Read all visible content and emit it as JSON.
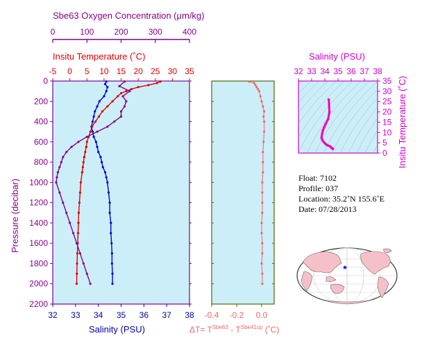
{
  "chart_data": [
    {
      "type": "line",
      "panel": "main-profile",
      "axes": {
        "pressure": {
          "label": "Pressure (decibar)",
          "range": [
            0,
            2200
          ],
          "ticks": [
            0,
            200,
            400,
            600,
            800,
            1000,
            1200,
            1400,
            1600,
            1800,
            2000,
            2200
          ],
          "inverted": true
        },
        "salinity": {
          "label": "Salinity (PSU)",
          "range": [
            32,
            38
          ],
          "ticks": [
            32,
            33,
            34,
            35,
            36,
            37,
            38
          ]
        },
        "temperature": {
          "label": "Insitu Temperature (˚C)",
          "range": [
            -5,
            35
          ],
          "ticks": [
            -5,
            0,
            5,
            10,
            15,
            20,
            25,
            30,
            35
          ]
        },
        "oxygen": {
          "label": "Sbe63 Oxygen Concentration (μm/kg)",
          "range": [
            0,
            400
          ],
          "ticks": [
            0,
            100,
            200,
            300,
            400
          ]
        }
      },
      "series": [
        {
          "name": "Salinity",
          "axis": "salinity",
          "color": "#0000dd",
          "pressure": [
            5,
            30,
            60,
            100,
            150,
            200,
            250,
            300,
            350,
            400,
            450,
            500,
            550,
            600,
            650,
            700,
            750,
            800,
            850,
            900,
            950,
            1000,
            1100,
            1200,
            1300,
            1400,
            1500,
            1600,
            1700,
            1800,
            1900,
            2000
          ],
          "values": [
            34.35,
            34.3,
            34.4,
            34.35,
            34.25,
            34.05,
            33.95,
            33.85,
            33.8,
            33.75,
            33.7,
            33.75,
            33.8,
            33.9,
            33.95,
            34.0,
            34.1,
            34.15,
            34.2,
            34.3,
            34.35,
            34.4,
            34.45,
            34.5,
            34.5,
            34.55,
            34.55,
            34.58,
            34.6,
            34.6,
            34.62,
            34.62
          ]
        },
        {
          "name": "Temperature",
          "axis": "temperature",
          "color": "#dd0000",
          "pressure": [
            5,
            20,
            40,
            60,
            80,
            100,
            120,
            150,
            200,
            250,
            300,
            350,
            400,
            450,
            500,
            550,
            600,
            650,
            700,
            750,
            800,
            850,
            900,
            1000,
            1100,
            1200,
            1300,
            1400,
            1500,
            1600,
            1700,
            1800,
            1900,
            2000
          ],
          "values": [
            26.5,
            25.5,
            23,
            20,
            18,
            16.5,
            15,
            14,
            12.5,
            11,
            9.5,
            8.5,
            7.5,
            6.5,
            6,
            5.5,
            5,
            4.8,
            4.5,
            4.2,
            4,
            3.8,
            3.6,
            3.2,
            3,
            2.8,
            2.6,
            2.5,
            2.4,
            2.3,
            2.2,
            2.1,
            2.05,
            2.0
          ]
        },
        {
          "name": "Oxygen",
          "axis": "oxygen",
          "color": "#880088",
          "pressure": [
            5,
            50,
            100,
            150,
            200,
            250,
            300,
            350,
            400,
            450,
            500,
            550,
            600,
            650,
            700,
            750,
            800,
            850,
            900,
            950,
            1000,
            1100,
            1200,
            1300,
            1400,
            1500,
            1600,
            1700,
            1800,
            1900,
            2000
          ],
          "values": [
            210,
            195,
            225,
            205,
            215,
            210,
            200,
            200,
            180,
            160,
            130,
            100,
            75,
            55,
            40,
            30,
            25,
            20,
            15,
            12,
            10,
            20,
            30,
            40,
            50,
            60,
            70,
            80,
            90,
            100,
            110
          ]
        }
      ]
    },
    {
      "type": "scatter",
      "panel": "delta-t",
      "xlabel": "ΔT= T^Sbe63 - T^Sbe41cp (˚C)",
      "xlim": [
        -0.4,
        0.1
      ],
      "xticks": [
        -0.4,
        -0.2,
        0.0
      ],
      "color": "#ee6666",
      "pressure": [
        5,
        20,
        40,
        60,
        80,
        100,
        150,
        200,
        250,
        300,
        350,
        400,
        500,
        600,
        700,
        800,
        900,
        1000,
        1100,
        1200,
        1300,
        1400,
        1500,
        1600,
        1700,
        1800,
        1900,
        2000
      ],
      "values": [
        -0.1,
        -0.06,
        -0.05,
        -0.04,
        -0.03,
        -0.02,
        -0.01,
        0.0,
        0.01,
        0.02,
        0.015,
        0.02,
        0.02,
        0.015,
        0.01,
        0.01,
        0.01,
        0.005,
        0.005,
        0.005,
        0.005,
        0.0,
        0.0,
        0.005,
        0.005,
        0.0,
        0.005,
        0.005
      ]
    },
    {
      "type": "scatter",
      "panel": "ts-diagram",
      "title": "Salinity (PSU)",
      "xlabel": "Salinity (PSU)",
      "ylabel": "Insitu Temperature (˚C)",
      "xlim": [
        32,
        38
      ],
      "xticks": [
        32,
        33,
        34,
        35,
        36,
        37,
        38
      ],
      "ylim": [
        0,
        35
      ],
      "yticks": [
        0,
        5,
        10,
        15,
        20,
        25,
        30,
        35
      ],
      "color": "#ee00bb",
      "salinity": [
        34.62,
        34.55,
        34.5,
        34.45,
        34.35,
        34.2,
        34.1,
        34.0,
        33.9,
        33.8,
        33.75,
        33.8,
        33.85,
        33.95,
        34.05,
        34.25,
        34.35,
        34.3
      ],
      "temperature": [
        2.0,
        2.3,
        2.6,
        3.0,
        3.4,
        3.8,
        4.2,
        4.8,
        5.5,
        6.5,
        7.5,
        9.5,
        11,
        12.5,
        14,
        16.5,
        20,
        26
      ]
    }
  ],
  "info": {
    "float": "Float:  7102",
    "profile": "Profile:  037",
    "location": "Location:  35.2˚N  155.6˚E",
    "date": "Date:  07/28/2013"
  },
  "map": {
    "marker": "★",
    "marker_color": "#0000cc",
    "land_color": "#f5c0c8",
    "ocean_color": "#ffffff"
  },
  "labels": {
    "oxygen_title": "Sbe63 Oxygen Concentration (μm/kg)",
    "temp_title": "Insitu Temperature (˚C)",
    "sal_bottom": "Salinity (PSU)",
    "pressure": "Pressure (decibar)",
    "dt_prefix": "ΔT= T",
    "dt_sup1": "Sbe63",
    "dt_mid": " - T",
    "dt_sup2": "Sbe41cp",
    "dt_suffix": " (˚C)",
    "ts_title": "Salinity (PSU)",
    "ts_ylabel": "Insitu Temperature (˚C)"
  },
  "colors": {
    "panel_bg": "#cceef8",
    "axis": "#7a0099",
    "oxygen": "#880088",
    "temperature": "#dd0000",
    "salinity": "#0000dd",
    "delta": "#ee6666",
    "ts": "#ee00bb",
    "ts_axis": "#cc00cc",
    "dt_axis": "#556600"
  }
}
